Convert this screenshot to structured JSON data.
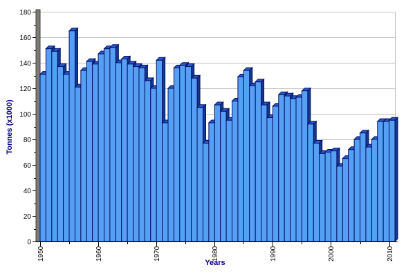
{
  "chart_data": {
    "type": "bar",
    "title": "",
    "xlabel": "Years",
    "ylabel": "Tonnes (x1000)",
    "ylim": [
      0,
      180
    ],
    "grid": true,
    "legend": false,
    "y_tick_labels": [
      "0",
      "20",
      "40",
      "60",
      "80",
      "100",
      "120",
      "140",
      "160",
      "180"
    ],
    "y_major_tick_step": 20,
    "y_minor_tick_step": 10,
    "x_tick_labels": [
      "1950",
      "1960",
      "1970",
      "1980",
      "1990",
      "2000",
      "2010"
    ],
    "x_major_tick_step": 10,
    "x_minor_tick_step": 5,
    "categories": [
      1950,
      1951,
      1952,
      1953,
      1954,
      1955,
      1956,
      1957,
      1958,
      1959,
      1960,
      1961,
      1962,
      1963,
      1964,
      1965,
      1966,
      1967,
      1968,
      1969,
      1970,
      1971,
      1972,
      1973,
      1974,
      1975,
      1976,
      1977,
      1978,
      1979,
      1980,
      1981,
      1982,
      1983,
      1984,
      1985,
      1986,
      1987,
      1988,
      1989,
      1990,
      1991,
      1992,
      1993,
      1994,
      1995,
      1996,
      1997,
      1998,
      1999,
      2000,
      2001,
      2002,
      2003,
      2004,
      2005,
      2006,
      2007,
      2008,
      2009,
      2010
    ],
    "values": [
      131,
      151,
      149,
      137,
      131,
      165,
      121,
      134,
      141,
      139,
      147,
      151,
      152,
      140,
      143,
      139,
      137,
      136,
      126,
      120,
      142,
      93,
      120,
      136,
      138,
      137,
      128,
      105,
      77,
      93,
      107,
      102,
      95,
      110,
      129,
      134,
      122,
      125,
      107,
      97,
      106,
      115,
      114,
      112,
      113,
      118,
      92,
      77,
      69,
      70,
      71,
      59,
      65,
      72,
      80,
      85,
      74,
      80,
      94,
      94,
      95
    ],
    "colors": {
      "bar_front": "#55a0f5",
      "bar_top": "#2d55cb",
      "bar_side": "#16388f",
      "bar_outline": "#001060",
      "gridline": "#c0c0c0",
      "plot_border": "#b8b8c8",
      "axis_wall": "#7c7c74",
      "axis_wall_edge": "#42423c",
      "axis_line": "#000000",
      "tick_label": "#000000",
      "axis_title": "#000080",
      "background": "#ffffff"
    }
  }
}
